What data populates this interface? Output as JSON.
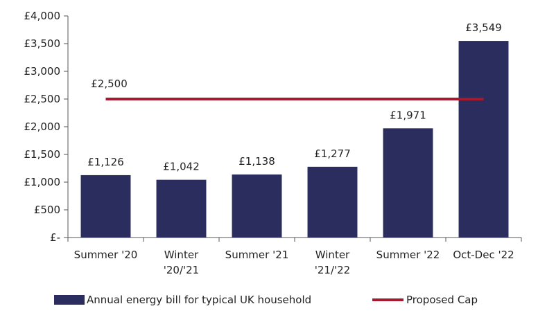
{
  "chart_data": {
    "type": "bar",
    "title": "",
    "xlabel": "",
    "ylabel": "",
    "ylim": [
      0,
      4000
    ],
    "yticks": [
      0,
      500,
      1000,
      1500,
      2000,
      2500,
      3000,
      3500,
      4000
    ],
    "ytick_labels": [
      "£-",
      "£500",
      "£1,000",
      "£1,500",
      "£2,000",
      "£2,500",
      "£3,000",
      "£3,500",
      "£4,000"
    ],
    "categories": [
      [
        "Summer '20"
      ],
      [
        "Winter",
        "'20/'21"
      ],
      [
        "Summer '21"
      ],
      [
        "Winter",
        "'21/'22"
      ],
      [
        "Summer  '22"
      ],
      [
        "Oct-Dec '22"
      ]
    ],
    "series": [
      {
        "name": "Annual energy bill for typical UK household",
        "kind": "bar",
        "color": "#2b2d5e",
        "values": [
          1126,
          1042,
          1138,
          1277,
          1971,
          3549
        ],
        "labels": [
          "£1,126",
          "£1,042",
          "£1,138",
          "£1,277",
          "£1,971",
          "£3,549"
        ]
      },
      {
        "name": "Proposed Cap",
        "kind": "line",
        "color": "#a6192e",
        "value": 2500,
        "label": "£2,500"
      }
    ],
    "legend_position": "bottom"
  }
}
